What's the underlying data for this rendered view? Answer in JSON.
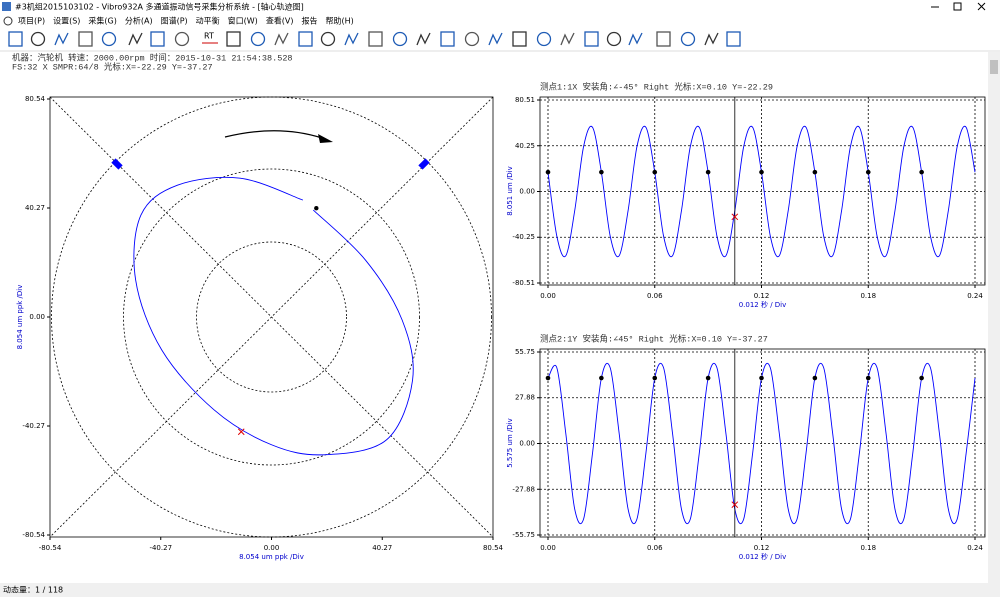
{
  "window": {
    "title": "#3机组2015103102 - Vibro932A 多通道振动信号采集分析系统 - [轴心轨迹图]"
  },
  "menu": [
    "项目(P)",
    "设置(S)",
    "采集(G)",
    "分析(A)",
    "图谱(P)",
    "动平衡",
    "窗口(W)",
    "查看(V)",
    "报告",
    "帮助(H)"
  ],
  "toolbar": [
    "RT"
  ],
  "info": [
    "机器：汽轮机  转速：2000.00rpm  时间：2015-10-31 21:54:38.528",
    "FS:32 X  SMPR:64/8  光标:X=-22.29 Y=-37.27"
  ],
  "status": "动态量：1 / 118",
  "chart_data": [
    {
      "type": "orbit",
      "xlabel": "8.054 um ppk /Div",
      "ylabel": "8.054 um ppk /Div",
      "xlim": [
        -80.54,
        80.54
      ],
      "ylim": [
        -80.54,
        80.54
      ],
      "xticks": [
        -80.54,
        -40.27,
        {
          "value": 0,
          "label": "0.00"
        },
        40.27,
        80.54
      ],
      "yticks": [
        80.54,
        40.27,
        {
          "value": 0,
          "label": "0.00"
        },
        -40.27,
        -80.54
      ],
      "series": [
        {
          "color": "#0000ff",
          "x": [
            11.4,
            -11.4,
            -34.2,
            -47.5,
            -49.4,
            -39.9,
            -20.9,
            0,
            19.0,
            41.8,
            51.3,
            47.5,
            34.2,
            15.2
          ],
          "values": [
            43.2,
            51.3,
            48.7,
            37.6,
            13.7,
            -12.2,
            -34.3,
            -47.2,
            -50.9,
            -45.4,
            -23.2,
            -1.1,
            21.0,
            39.5
          ]
        }
      ],
      "start": {
        "x": 16.3,
        "y": 40.2
      },
      "cursor": {
        "x": -11.0,
        "y": -42.4
      }
    },
    {
      "type": "line",
      "title": "测点1:1X  安装角:∠-45° Right  光标:X=0.10 Y=-22.29",
      "xlabel": "0.012 秒 / Div",
      "ylabel": "8.051 um /Div",
      "xlim": [
        0,
        0.24
      ],
      "ylim": [
        -80.51,
        80.51
      ],
      "xticks": [
        {
          "value": 0,
          "label": "0.00"
        },
        0.06,
        0.12,
        0.18,
        0.24
      ],
      "yticks": [
        80.51,
        40.25,
        {
          "value": 0,
          "label": "0.00"
        },
        -40.25,
        -80.51
      ],
      "grid": true,
      "x": [
        0,
        0.005,
        0.01,
        0.015,
        0.02,
        0.025,
        0.03,
        0.035,
        0.04,
        0.045,
        0.05,
        0.055,
        0.06,
        0.065,
        0.07,
        0.075,
        0.08,
        0.085,
        0.09,
        0.095,
        0.1,
        0.105,
        0.11,
        0.115,
        0.12,
        0.125,
        0.13,
        0.135,
        0.14,
        0.145,
        0.15,
        0.155,
        0.16,
        0.165,
        0.17,
        0.175,
        0.18,
        0.185,
        0.19,
        0.195,
        0.2,
        0.205,
        0.21,
        0.215,
        0.22,
        0.225,
        0.23,
        0.235,
        0.24
      ],
      "series": [
        {
          "color": "#0000ff",
          "values": [
            17.0,
            -39.6,
            -56.5,
            -17.0,
            39.6,
            56.5,
            17.0,
            -39.6,
            -56.5,
            -17.0,
            39.6,
            56.5,
            17.0,
            -39.6,
            -56.5,
            -17.0,
            39.6,
            56.5,
            17.0,
            -39.6,
            -56.5,
            -17.0,
            39.6,
            56.5,
            17.0,
            -39.6,
            -56.5,
            -17.0,
            39.6,
            56.5,
            17.0,
            -39.6,
            -56.5,
            -17.0,
            39.6,
            56.5,
            17.0,
            -39.6,
            -56.5,
            -17.0,
            39.6,
            56.5,
            17.0,
            -39.6,
            -56.5,
            -17.0,
            39.6,
            56.5,
            17.0
          ]
        }
      ],
      "keyphasor": {
        "x": [
          0,
          0.03,
          0.06,
          0.09,
          0.12,
          0.15,
          0.18,
          0.21
        ],
        "values": [
          17.0,
          17.0,
          17.0,
          17.0,
          17.0,
          17.0,
          17.0,
          17.0
        ]
      },
      "cursor": {
        "x": 0.105,
        "y": -22.29
      }
    },
    {
      "type": "line",
      "title": "测点2:1Y  安装角:∠45° Right  光标:X=0.10 Y=-37.27",
      "xlabel": "0.012 秒 / Div",
      "ylabel": "5.575 um /Div",
      "xlim": [
        0,
        0.24
      ],
      "ylim": [
        -55.75,
        55.75
      ],
      "xticks": [
        {
          "value": 0,
          "label": "0.00"
        },
        0.06,
        0.12,
        0.18,
        0.24
      ],
      "yticks": [
        55.75,
        27.88,
        {
          "value": 0,
          "label": "0.00"
        },
        -27.88,
        -55.75
      ],
      "grid": true,
      "x": [
        0,
        0.005,
        0.01,
        0.015,
        0.02,
        0.025,
        0.03,
        0.035,
        0.04,
        0.045,
        0.05,
        0.055,
        0.06,
        0.065,
        0.07,
        0.075,
        0.08,
        0.085,
        0.09,
        0.095,
        0.1,
        0.105,
        0.11,
        0.115,
        0.12,
        0.125,
        0.13,
        0.135,
        0.14,
        0.145,
        0.15,
        0.155,
        0.16,
        0.165,
        0.17,
        0.175,
        0.18,
        0.185,
        0.19,
        0.195,
        0.2,
        0.205,
        0.21,
        0.215,
        0.22,
        0.225,
        0.23,
        0.235,
        0.24
      ],
      "series": [
        {
          "color": "#0000ff",
          "values": [
            39.9,
            46.0,
            6.1,
            -39.9,
            -46.0,
            -6.1,
            39.9,
            46.0,
            6.1,
            -39.9,
            -46.0,
            -6.1,
            39.9,
            46.0,
            6.1,
            -39.9,
            -46.0,
            -6.1,
            39.9,
            46.0,
            6.1,
            -39.9,
            -46.0,
            -6.1,
            39.9,
            46.0,
            6.1,
            -39.9,
            -46.0,
            -6.1,
            39.9,
            46.0,
            6.1,
            -39.9,
            -46.0,
            -6.1,
            39.9,
            46.0,
            6.1,
            -39.9,
            -46.0,
            -6.1,
            39.9,
            46.0,
            6.1,
            -39.9,
            -46.0,
            -6.1,
            39.9
          ]
        }
      ],
      "keyphasor": {
        "x": [
          0,
          0.03,
          0.06,
          0.09,
          0.12,
          0.15,
          0.18,
          0.21
        ],
        "values": [
          39.9,
          39.9,
          39.9,
          39.9,
          39.9,
          39.9,
          39.9,
          39.9
        ]
      },
      "cursor": {
        "x": 0.105,
        "y": -37.27
      }
    }
  ]
}
